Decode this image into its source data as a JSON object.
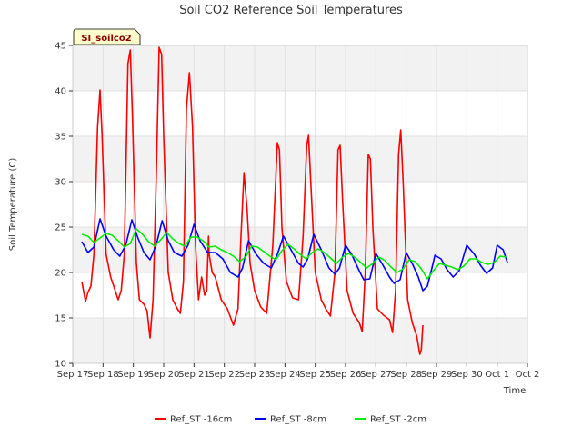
{
  "chart_data": {
    "type": "line",
    "title": "Soil CO2 Reference Soil Temperatures",
    "xlabel": "Time",
    "ylabel": "Soil Temperature (C)",
    "site_tag": "SI_soilco2",
    "xlim": [
      0,
      15
    ],
    "ylim": [
      10,
      45
    ],
    "x_tick_labels": [
      "Sep 17",
      "Sep 18",
      "Sep 19",
      "Sep 20",
      "Sep 21",
      "Sep 22",
      "Sep 23",
      "Sep 24",
      "Sep 25",
      "Sep 26",
      "Sep 27",
      "Sep 28",
      "Sep 29",
      "Sep 30",
      "Oct 1",
      "Oct 2"
    ],
    "y_ticks": [
      10,
      15,
      20,
      25,
      30,
      35,
      40,
      45
    ],
    "grid": true,
    "legend_position": "bottom",
    "series": [
      {
        "name": "Ref_ST -16cm",
        "color": "#ff0000",
        "points": [
          [
            0.3,
            19
          ],
          [
            0.42,
            16.8
          ],
          [
            0.5,
            17.8
          ],
          [
            0.6,
            18.5
          ],
          [
            0.7,
            22
          ],
          [
            0.82,
            36
          ],
          [
            0.9,
            40.1
          ],
          [
            0.97,
            35
          ],
          [
            1.1,
            22
          ],
          [
            1.25,
            19.5
          ],
          [
            1.4,
            18
          ],
          [
            1.5,
            17
          ],
          [
            1.6,
            18
          ],
          [
            1.7,
            22
          ],
          [
            1.82,
            43
          ],
          [
            1.9,
            44.5
          ],
          [
            1.97,
            37
          ],
          [
            2.1,
            21
          ],
          [
            2.2,
            17
          ],
          [
            2.35,
            16.5
          ],
          [
            2.45,
            15.8
          ],
          [
            2.55,
            12.8
          ],
          [
            2.65,
            17
          ],
          [
            2.75,
            30
          ],
          [
            2.85,
            44.8
          ],
          [
            2.93,
            44
          ],
          [
            3.0,
            35
          ],
          [
            3.15,
            20
          ],
          [
            3.3,
            17
          ],
          [
            3.45,
            16
          ],
          [
            3.55,
            15.5
          ],
          [
            3.65,
            19
          ],
          [
            3.75,
            38
          ],
          [
            3.85,
            42
          ],
          [
            3.95,
            36
          ],
          [
            4.05,
            23
          ],
          [
            4.15,
            17
          ],
          [
            4.25,
            19.5
          ],
          [
            4.35,
            17.5
          ],
          [
            4.42,
            18
          ],
          [
            4.48,
            24
          ],
          [
            4.5,
            22
          ],
          [
            4.6,
            20
          ],
          [
            4.7,
            19.5
          ],
          [
            4.9,
            17
          ],
          [
            5.1,
            16
          ],
          [
            5.3,
            14.2
          ],
          [
            5.45,
            16
          ],
          [
            5.55,
            24
          ],
          [
            5.65,
            31
          ],
          [
            5.75,
            27
          ],
          [
            5.85,
            21
          ],
          [
            6.0,
            18
          ],
          [
            6.2,
            16.2
          ],
          [
            6.4,
            15.5
          ],
          [
            6.6,
            23
          ],
          [
            6.75,
            34.3
          ],
          [
            6.82,
            33.5
          ],
          [
            6.9,
            25
          ],
          [
            7.05,
            19
          ],
          [
            7.25,
            17.2
          ],
          [
            7.45,
            17
          ],
          [
            7.6,
            24
          ],
          [
            7.72,
            34
          ],
          [
            7.78,
            35.1
          ],
          [
            7.85,
            30
          ],
          [
            8.0,
            20
          ],
          [
            8.2,
            17
          ],
          [
            8.35,
            16
          ],
          [
            8.5,
            15.2
          ],
          [
            8.65,
            20
          ],
          [
            8.75,
            33.5
          ],
          [
            8.82,
            34
          ],
          [
            8.9,
            28
          ],
          [
            9.05,
            18
          ],
          [
            9.25,
            15.5
          ],
          [
            9.45,
            14.5
          ],
          [
            9.55,
            13.5
          ],
          [
            9.65,
            20
          ],
          [
            9.75,
            33
          ],
          [
            9.82,
            32.5
          ],
          [
            9.9,
            25
          ],
          [
            10.05,
            16
          ],
          [
            10.25,
            15.3
          ],
          [
            10.45,
            14.8
          ],
          [
            10.55,
            13.4
          ],
          [
            10.65,
            18
          ],
          [
            10.75,
            33
          ],
          [
            10.82,
            35.7
          ],
          [
            10.9,
            30
          ],
          [
            11.05,
            17
          ],
          [
            11.2,
            14.5
          ],
          [
            11.35,
            13
          ],
          [
            11.45,
            11
          ],
          [
            11.5,
            11.5
          ],
          [
            11.55,
            14.2
          ]
        ]
      },
      {
        "name": "Ref_ST -8cm",
        "color": "#0000ff",
        "points": [
          [
            0.3,
            23.4
          ],
          [
            0.5,
            22.2
          ],
          [
            0.7,
            22.8
          ],
          [
            0.9,
            25.9
          ],
          [
            1.1,
            24
          ],
          [
            1.35,
            22.5
          ],
          [
            1.55,
            21.8
          ],
          [
            1.75,
            23
          ],
          [
            1.95,
            25.8
          ],
          [
            2.15,
            23.8
          ],
          [
            2.35,
            22.2
          ],
          [
            2.55,
            21.4
          ],
          [
            2.75,
            23
          ],
          [
            2.95,
            25.7
          ],
          [
            3.15,
            23.5
          ],
          [
            3.35,
            22.2
          ],
          [
            3.6,
            21.8
          ],
          [
            3.8,
            23
          ],
          [
            4.0,
            25.3
          ],
          [
            4.2,
            23.5
          ],
          [
            4.45,
            22.2
          ],
          [
            4.7,
            22.2
          ],
          [
            4.95,
            21.5
          ],
          [
            5.2,
            20
          ],
          [
            5.45,
            19.5
          ],
          [
            5.6,
            20.5
          ],
          [
            5.8,
            23.5
          ],
          [
            6.05,
            22
          ],
          [
            6.3,
            21
          ],
          [
            6.55,
            20.5
          ],
          [
            6.75,
            22
          ],
          [
            6.95,
            24
          ],
          [
            7.2,
            22.5
          ],
          [
            7.45,
            21
          ],
          [
            7.6,
            20.6
          ],
          [
            7.75,
            21.5
          ],
          [
            7.95,
            24.2
          ],
          [
            8.2,
            22.5
          ],
          [
            8.45,
            20.5
          ],
          [
            8.65,
            19.8
          ],
          [
            8.8,
            20.5
          ],
          [
            9.0,
            23
          ],
          [
            9.2,
            22
          ],
          [
            9.45,
            20.2
          ],
          [
            9.6,
            19.2
          ],
          [
            9.8,
            19.3
          ],
          [
            10.0,
            22.1
          ],
          [
            10.2,
            21
          ],
          [
            10.45,
            19.5
          ],
          [
            10.6,
            18.8
          ],
          [
            10.8,
            19.2
          ],
          [
            11.0,
            22.2
          ],
          [
            11.2,
            21
          ],
          [
            11.4,
            19.5
          ],
          [
            11.55,
            18
          ],
          [
            11.7,
            18.5
          ],
          [
            11.85,
            20.5
          ],
          [
            11.95,
            21.9
          ],
          [
            12.15,
            21.5
          ],
          [
            12.35,
            20.3
          ],
          [
            12.55,
            19.5
          ],
          [
            12.75,
            20.2
          ],
          [
            13.0,
            23
          ],
          [
            13.25,
            22
          ],
          [
            13.45,
            20.8
          ],
          [
            13.65,
            19.9
          ],
          [
            13.85,
            20.5
          ],
          [
            14.0,
            23
          ],
          [
            14.2,
            22.5
          ],
          [
            14.35,
            21
          ]
        ]
      },
      {
        "name": "Ref_ST -2cm",
        "color": "#00ee00",
        "points": [
          [
            0.3,
            24.2
          ],
          [
            0.5,
            24
          ],
          [
            0.7,
            23.3
          ],
          [
            0.9,
            23.8
          ],
          [
            1.1,
            24.3
          ],
          [
            1.3,
            24.1
          ],
          [
            1.5,
            23.5
          ],
          [
            1.7,
            22.8
          ],
          [
            1.9,
            23.2
          ],
          [
            2.1,
            24.8
          ],
          [
            2.3,
            24.2
          ],
          [
            2.5,
            23.4
          ],
          [
            2.7,
            22.9
          ],
          [
            2.9,
            23.6
          ],
          [
            3.1,
            24.4
          ],
          [
            3.3,
            23.7
          ],
          [
            3.5,
            23.2
          ],
          [
            3.7,
            22.9
          ],
          [
            3.9,
            23.9
          ],
          [
            4.1,
            23.9
          ],
          [
            4.3,
            23.5
          ],
          [
            4.5,
            22.8
          ],
          [
            4.7,
            22.9
          ],
          [
            4.9,
            22.5
          ],
          [
            5.1,
            22.2
          ],
          [
            5.3,
            21.8
          ],
          [
            5.5,
            21.2
          ],
          [
            5.7,
            21.7
          ],
          [
            5.9,
            22.9
          ],
          [
            6.1,
            22.8
          ],
          [
            6.3,
            22.3
          ],
          [
            6.5,
            21.8
          ],
          [
            6.7,
            21.4
          ],
          [
            6.9,
            22.4
          ],
          [
            7.1,
            23.1
          ],
          [
            7.3,
            22.6
          ],
          [
            7.5,
            22
          ],
          [
            7.7,
            21.5
          ],
          [
            7.9,
            22.2
          ],
          [
            8.1,
            22.6
          ],
          [
            8.3,
            22.2
          ],
          [
            8.5,
            21.6
          ],
          [
            8.7,
            21
          ],
          [
            8.9,
            21.7
          ],
          [
            9.1,
            22.1
          ],
          [
            9.3,
            21.7
          ],
          [
            9.5,
            21.1
          ],
          [
            9.7,
            20.5
          ],
          [
            9.9,
            21
          ],
          [
            10.1,
            21.7
          ],
          [
            10.3,
            21.3
          ],
          [
            10.5,
            20.6
          ],
          [
            10.7,
            20
          ],
          [
            10.9,
            20.4
          ],
          [
            11.1,
            21.4
          ],
          [
            11.3,
            21.2
          ],
          [
            11.5,
            20.4
          ],
          [
            11.7,
            19.3
          ],
          [
            11.9,
            20.2
          ],
          [
            12.1,
            21
          ],
          [
            12.3,
            20.8
          ],
          [
            12.5,
            20.6
          ],
          [
            12.7,
            20.3
          ],
          [
            12.9,
            20.7
          ],
          [
            13.1,
            21.5
          ],
          [
            13.3,
            21.5
          ],
          [
            13.5,
            21.1
          ],
          [
            13.7,
            20.9
          ],
          [
            13.9,
            21.1
          ],
          [
            14.1,
            21.8
          ],
          [
            14.3,
            21.7
          ]
        ]
      }
    ]
  }
}
